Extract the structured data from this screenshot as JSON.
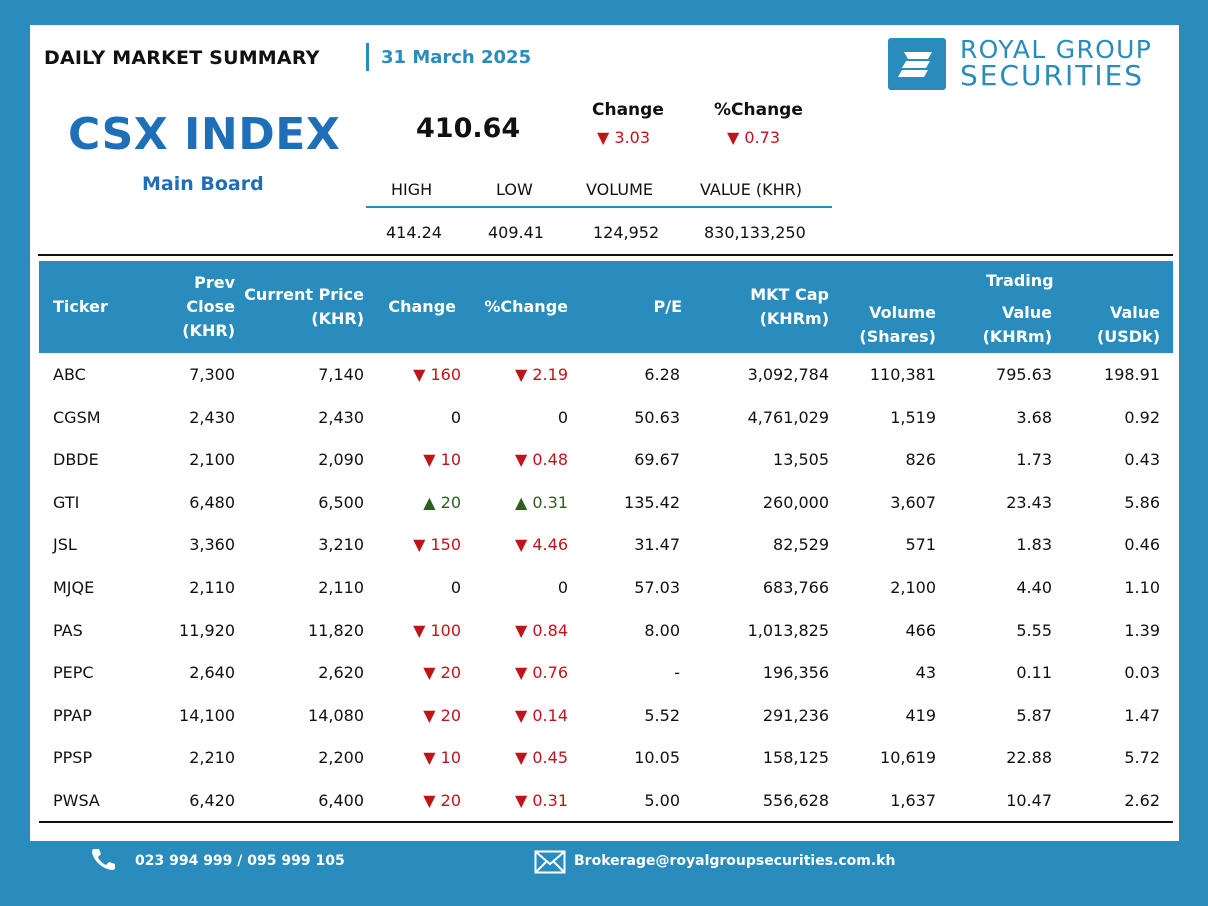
{
  "header": {
    "title": "DAILY MARKET SUMMARY",
    "date": "31 March 2025",
    "logo_line1": "ROYAL GROUP",
    "logo_line2": "SECURITIES"
  },
  "index": {
    "name": "CSX INDEX",
    "board": "Main Board",
    "value": "410.64",
    "change_label": "Change",
    "change_value": "3.03",
    "pct_change_label": "%Change",
    "pct_change_value": "0.73",
    "stats_labels": {
      "high": "HIGH",
      "low": "LOW",
      "volume": "VOLUME",
      "value": "VALUE (KHR)"
    },
    "stats_values": {
      "high": "414.24",
      "low": "409.41",
      "volume": "124,952",
      "value": "830,133,250"
    }
  },
  "table": {
    "headers": {
      "ticker": "Ticker",
      "prev_close": [
        "Prev",
        "Close",
        "(KHR)"
      ],
      "current_price": [
        "Current Price",
        "(KHR)"
      ],
      "change": "Change",
      "pct_change": "%Change",
      "pe": "P/E",
      "mkt_cap": [
        "MKT Cap",
        "(KHRm)"
      ],
      "volume": [
        "Volume",
        "(Shares)"
      ],
      "trading": "Trading",
      "value_khrm": [
        "Value",
        "(KHRm)"
      ],
      "value_usdk": [
        "Value",
        "(USDk)"
      ]
    },
    "rows": [
      {
        "ticker": "ABC",
        "prev": "7,300",
        "cur": "7,140",
        "dir": "down",
        "chg": "160",
        "pct": "2.19",
        "pe": "6.28",
        "cap": "3,092,784",
        "vol": "110,381",
        "vkhr": "795.63",
        "vusd": "198.91"
      },
      {
        "ticker": "CGSM",
        "prev": "2,430",
        "cur": "2,430",
        "dir": "flat",
        "chg": "0",
        "pct": "0",
        "pe": "50.63",
        "cap": "4,761,029",
        "vol": "1,519",
        "vkhr": "3.68",
        "vusd": "0.92"
      },
      {
        "ticker": "DBDE",
        "prev": "2,100",
        "cur": "2,090",
        "dir": "down",
        "chg": "10",
        "pct": "0.48",
        "pe": "69.67",
        "cap": "13,505",
        "vol": "826",
        "vkhr": "1.73",
        "vusd": "0.43"
      },
      {
        "ticker": "GTI",
        "prev": "6,480",
        "cur": "6,500",
        "dir": "up",
        "chg": "20",
        "pct": "0.31",
        "pe": "135.42",
        "cap": "260,000",
        "vol": "3,607",
        "vkhr": "23.43",
        "vusd": "5.86"
      },
      {
        "ticker": "JSL",
        "prev": "3,360",
        "cur": "3,210",
        "dir": "down",
        "chg": "150",
        "pct": "4.46",
        "pe": "31.47",
        "cap": "82,529",
        "vol": "571",
        "vkhr": "1.83",
        "vusd": "0.46"
      },
      {
        "ticker": "MJQE",
        "prev": "2,110",
        "cur": "2,110",
        "dir": "flat",
        "chg": "0",
        "pct": "0",
        "pe": "57.03",
        "cap": "683,766",
        "vol": "2,100",
        "vkhr": "4.40",
        "vusd": "1.10"
      },
      {
        "ticker": "PAS",
        "prev": "11,920",
        "cur": "11,820",
        "dir": "down",
        "chg": "100",
        "pct": "0.84",
        "pe": "8.00",
        "cap": "1,013,825",
        "vol": "466",
        "vkhr": "5.55",
        "vusd": "1.39"
      },
      {
        "ticker": "PEPC",
        "prev": "2,640",
        "cur": "2,620",
        "dir": "down",
        "chg": "20",
        "pct": "0.76",
        "pe": "-",
        "cap": "196,356",
        "vol": "43",
        "vkhr": "0.11",
        "vusd": "0.03"
      },
      {
        "ticker": "PPAP",
        "prev": "14,100",
        "cur": "14,080",
        "dir": "down",
        "chg": "20",
        "pct": "0.14",
        "pe": "5.52",
        "cap": "291,236",
        "vol": "419",
        "vkhr": "5.87",
        "vusd": "1.47"
      },
      {
        "ticker": "PPSP",
        "prev": "2,210",
        "cur": "2,200",
        "dir": "down",
        "chg": "10",
        "pct": "0.45",
        "pe": "10.05",
        "cap": "158,125",
        "vol": "10,619",
        "vkhr": "22.88",
        "vusd": "5.72"
      },
      {
        "ticker": "PWSA",
        "prev": "6,420",
        "cur": "6,400",
        "dir": "down",
        "chg": "20",
        "pct": "0.31",
        "pe": "5.00",
        "cap": "556,628",
        "vol": "1,637",
        "vkhr": "10.47",
        "vusd": "2.62"
      }
    ]
  },
  "footer": {
    "phone": "023 994 999 / 095 999 105",
    "email": "Brokerage@royalgroupsecurities.com.kh"
  },
  "colors": {
    "brand": "#2a8cbd",
    "index_blue": "#1f6fb8",
    "down": "#c0141b",
    "up": "#2d5f1e"
  },
  "icons": [
    "logo-mark",
    "phone-icon",
    "mail-icon",
    "down-arrow-icon",
    "up-arrow-icon"
  ]
}
